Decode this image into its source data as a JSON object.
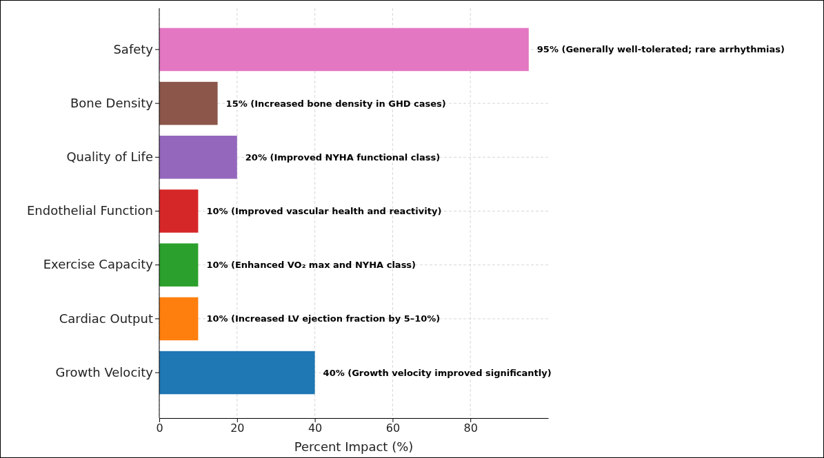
{
  "chart_data": {
    "type": "bar",
    "orientation": "horizontal",
    "xlabel": "Percent Impact (%)",
    "categories": [
      "Safety",
      "Bone Density",
      "Quality of Life",
      "Endothelial Function",
      "Exercise Capacity",
      "Cardiac Output",
      "Growth Velocity"
    ],
    "values": [
      95,
      15,
      20,
      10,
      10,
      10,
      40
    ],
    "colors": [
      "#e377c2",
      "#8c564b",
      "#9467bd",
      "#d62728",
      "#2ca02c",
      "#ff7f0e",
      "#1f77b4"
    ],
    "value_labels": [
      "95% (Generally well-tolerated; rare arrhythmias)",
      "15% (Increased bone density in GHD cases)",
      "20% (Improved NYHA functional class)",
      "10% (Improved vascular health and reactivity)",
      "10% (Enhanced VO₂ max and NYHA class)",
      "10% (Increased LV ejection fraction by 5–10%)",
      "40% (Growth velocity improved significantly)"
    ],
    "xlim": [
      0,
      100
    ],
    "xticks": [
      0,
      20,
      40,
      60,
      80
    ],
    "grid": true
  }
}
